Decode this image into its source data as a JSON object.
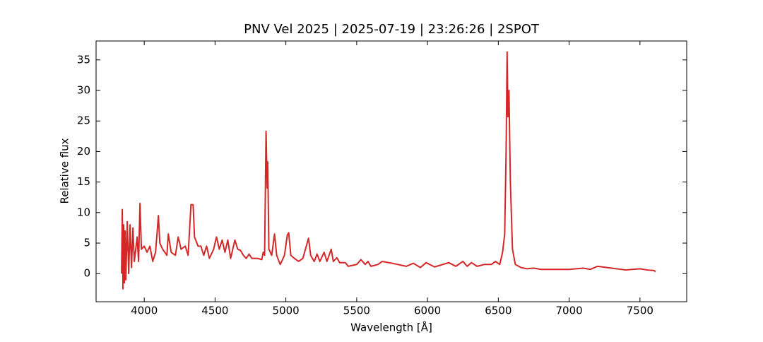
{
  "chart_data": {
    "type": "line",
    "title": "PNV Vel 2025 | 2025-07-19 | 23:26:26 | 2SPOT",
    "x_label": "Wavelength [Å]",
    "y_label": "Relative flux",
    "xlim": [
      3660,
      7830
    ],
    "ylim": [
      -4.6,
      38.1
    ],
    "xticks": [
      4000,
      4500,
      5000,
      5500,
      6000,
      6500,
      7000,
      7500
    ],
    "yticks": [
      0,
      5,
      10,
      15,
      20,
      25,
      30,
      35
    ],
    "series": [
      {
        "name": "PNV Vel 2025",
        "color": "#d62728",
        "x": [
          3840,
          3845,
          3850,
          3855,
          3860,
          3865,
          3870,
          3880,
          3890,
          3900,
          3910,
          3920,
          3930,
          3950,
          3960,
          3970,
          3980,
          4000,
          4020,
          4040,
          4060,
          4080,
          4100,
          4110,
          4130,
          4160,
          4170,
          4190,
          4220,
          4240,
          4260,
          4290,
          4310,
          4330,
          4345,
          4355,
          4380,
          4400,
          4420,
          4440,
          4460,
          4490,
          4510,
          4530,
          4550,
          4570,
          4590,
          4610,
          4640,
          4660,
          4680,
          4700,
          4720,
          4740,
          4760,
          4800,
          4830,
          4840,
          4850,
          4860,
          4868,
          4872,
          4880,
          4900,
          4920,
          4935,
          4960,
          4990,
          5010,
          5020,
          5035,
          5060,
          5090,
          5120,
          5160,
          5175,
          5200,
          5220,
          5240,
          5270,
          5290,
          5320,
          5335,
          5360,
          5380,
          5420,
          5440,
          5500,
          5530,
          5560,
          5580,
          5600,
          5650,
          5680,
          5750,
          5850,
          5900,
          5950,
          5990,
          6050,
          6150,
          6200,
          6250,
          6280,
          6310,
          6350,
          6400,
          6450,
          6480,
          6510,
          6530,
          6545,
          6555,
          6562,
          6568,
          6575,
          6585,
          6600,
          6620,
          6660,
          6700,
          6750,
          6800,
          6850,
          6900,
          7000,
          7100,
          7150,
          7200,
          7300,
          7400,
          7500,
          7550,
          7600,
          7610
        ],
        "values": [
          0,
          10.5,
          -2.5,
          8,
          -1.5,
          7,
          -1,
          8.5,
          0,
          8,
          1,
          7.5,
          2,
          6,
          2,
          11.5,
          4,
          4.5,
          3.5,
          4.5,
          2,
          3.5,
          9.5,
          5,
          4,
          3,
          6.5,
          3.5,
          3,
          6,
          4,
          4.5,
          3,
          11.3,
          11.3,
          6,
          4.5,
          4.5,
          3,
          4.5,
          2.5,
          4,
          6,
          4,
          5.5,
          3.5,
          5.5,
          2.5,
          5.5,
          4,
          3.8,
          3,
          2.5,
          3.2,
          2.5,
          2.5,
          2.3,
          3.5,
          3,
          23.3,
          14,
          18.3,
          4,
          3,
          6.5,
          3,
          1.5,
          3,
          6.3,
          6.7,
          3,
          2.5,
          2,
          2.5,
          5.8,
          3,
          2,
          3.2,
          2,
          3.5,
          2,
          4,
          2,
          2.6,
          1.8,
          1.8,
          1.2,
          1.5,
          2.3,
          1.5,
          2,
          1.2,
          1.5,
          2,
          1.7,
          1.2,
          1.7,
          1,
          1.8,
          1.1,
          1.8,
          1.2,
          2,
          1.2,
          1.8,
          1.2,
          1.5,
          1.5,
          2,
          1.5,
          3.5,
          6.5,
          20,
          36.3,
          25.7,
          30,
          15,
          4,
          1.5,
          1,
          0.8,
          0.9,
          0.7,
          0.7,
          0.7,
          0.7,
          0.9,
          0.7,
          1.2,
          0.9,
          0.6,
          0.8,
          0.6,
          0.5,
          0.3
        ]
      }
    ]
  }
}
